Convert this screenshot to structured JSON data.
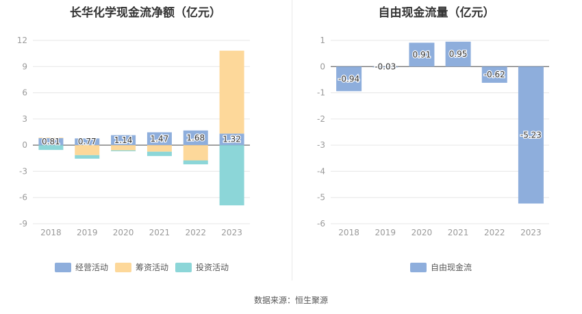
{
  "source": "数据来源：恒生聚源",
  "chart_data": [
    {
      "type": "bar",
      "stacked": true,
      "title": "长华化学现金流净额（亿元）",
      "categories": [
        "2018",
        "2019",
        "2020",
        "2021",
        "2022",
        "2023"
      ],
      "ylim": [
        -9,
        12
      ],
      "yticks": [
        12,
        9,
        6,
        3,
        0,
        -3,
        -6,
        -9
      ],
      "grid": true,
      "legend_position": "bottom",
      "series": [
        {
          "name": "经营活动",
          "color": "#8eaedc",
          "values": [
            0.81,
            0.77,
            1.14,
            1.47,
            1.68,
            1.32
          ],
          "labels": [
            "0.81",
            "0.77",
            "1.14",
            "1.47",
            "1.68",
            "1.32"
          ]
        },
        {
          "name": "筹资活动",
          "color": "#fdd89a",
          "values": [
            0.05,
            -1.15,
            -0.6,
            -0.75,
            -1.75,
            9.5
          ]
        },
        {
          "name": "投资活动",
          "color": "#8cd6d8",
          "values": [
            -0.55,
            -0.4,
            -0.1,
            -0.5,
            -0.45,
            -6.9
          ]
        }
      ]
    },
    {
      "type": "bar",
      "title": "自由现金流量（亿元）",
      "categories": [
        "2018",
        "2019",
        "2020",
        "2021",
        "2022",
        "2023"
      ],
      "ylim": [
        -6,
        1
      ],
      "yticks": [
        1,
        0,
        -1,
        -2,
        -3,
        -4,
        -5,
        -6
      ],
      "grid": true,
      "legend_position": "bottom",
      "series": [
        {
          "name": "自由现金流",
          "color": "#8eaedc",
          "values": [
            -0.94,
            -0.03,
            0.91,
            0.95,
            -0.62,
            -5.23
          ],
          "labels": [
            "-0.94",
            "-0.03",
            "0.91",
            "0.95",
            "-0.62",
            "-5.23"
          ]
        }
      ]
    }
  ]
}
